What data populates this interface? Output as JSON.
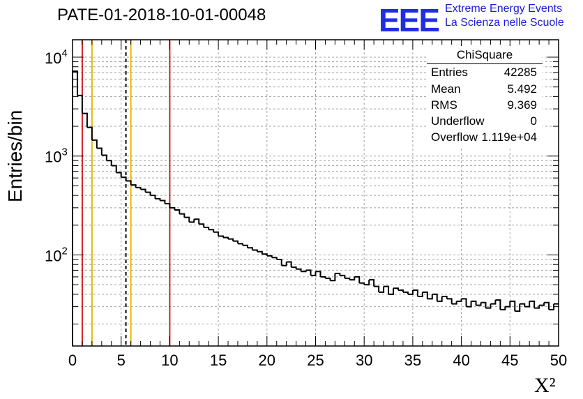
{
  "title": "PATE-01-2018-10-01-00048",
  "logo": {
    "mark": "EEE",
    "line1": "Extreme Energy Events",
    "line2": "La Scienza nelle Scuole",
    "color": "#1f2fe0"
  },
  "stats_box": {
    "title": "ChiSquare",
    "rows": [
      {
        "name": "Entries",
        "value": "42285"
      },
      {
        "name": "Mean",
        "value": "5.492"
      },
      {
        "name": "RMS",
        "value": "9.369"
      },
      {
        "name": "Underflow",
        "value": "0"
      },
      {
        "name": "Overflow",
        "value": "1.119e+04"
      }
    ]
  },
  "chart_data": {
    "type": "bar",
    "style": "step-histogram",
    "xlabel": "X²",
    "ylabel": "Entries/bin",
    "xlim": [
      0,
      50
    ],
    "ylim": [
      12,
      15000
    ],
    "y_scale": "log",
    "x_ticks": [
      0,
      5,
      10,
      15,
      20,
      25,
      30,
      35,
      40,
      45,
      50
    ],
    "y_tick_labels": [
      {
        "value": 100,
        "base": "10",
        "exp": "2"
      },
      {
        "value": 1000,
        "base": "10",
        "exp": "3"
      },
      {
        "value": 10000,
        "base": "10",
        "exp": "4"
      }
    ],
    "grid": true,
    "bin_width": 0.5,
    "values": [
      7200,
      4100,
      2700,
      1950,
      1450,
      1200,
      1020,
      900,
      800,
      680,
      610,
      560,
      510,
      480,
      460,
      430,
      400,
      370,
      355,
      330,
      300,
      285,
      260,
      240,
      215,
      230,
      205,
      190,
      180,
      170,
      155,
      150,
      145,
      138,
      130,
      125,
      118,
      112,
      108,
      102,
      98,
      94,
      90,
      78,
      85,
      75,
      72,
      68,
      70,
      62,
      68,
      60,
      58,
      55,
      65,
      62,
      58,
      56,
      60,
      52,
      50,
      56,
      48,
      42,
      48,
      40,
      46,
      44,
      42,
      40,
      44,
      38,
      42,
      36,
      40,
      34,
      38,
      36,
      32,
      34,
      36,
      30,
      34,
      31,
      33,
      29,
      32,
      35,
      28,
      30,
      34,
      27,
      32,
      30,
      34,
      29,
      31,
      33,
      28,
      32
    ],
    "vertical_lines": [
      {
        "x": 1.0,
        "color": "#d42020",
        "style": "solid"
      },
      {
        "x": 2.0,
        "color": "#e8b800",
        "style": "solid"
      },
      {
        "x": 5.492,
        "color": "#000000",
        "style": "dashed"
      },
      {
        "x": 6.0,
        "color": "#e8b800",
        "style": "solid"
      },
      {
        "x": 10.0,
        "color": "#d42020",
        "style": "solid"
      }
    ]
  }
}
